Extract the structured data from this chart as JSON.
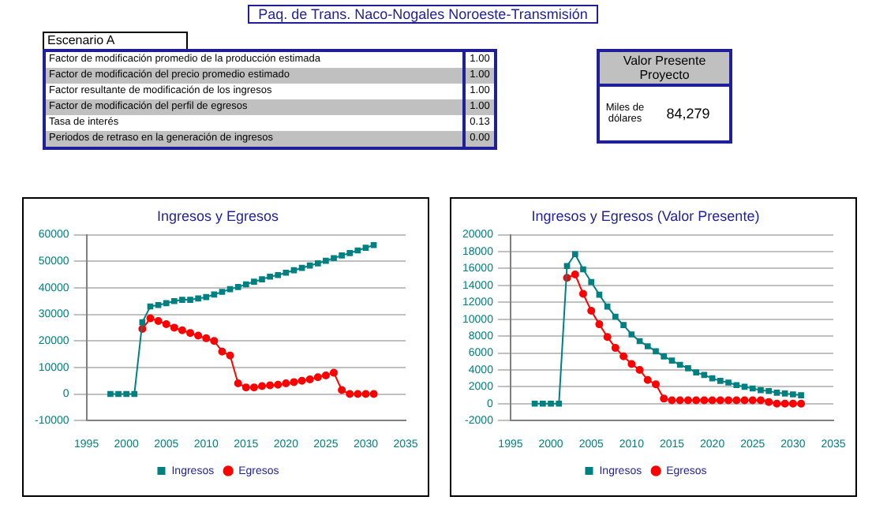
{
  "chart_data": [
    {
      "type": "other",
      "title": "Paq. de Trans. Naco-Nogales Noroeste-Transmisión",
      "subtitle": "Escenario A",
      "annotations": [
        "Factor de modificación promedio de la producción estimada",
        "1.00",
        "Factor de modificación del precio promedio estimado",
        "1.00",
        "Factor resultante de modificación de los ingresos",
        "1.00",
        "Factor de modificación del perfil de egresos",
        "1.00",
        "Tasa de interés",
        "0.13",
        "Periodos de retraso en la generación de ingresos",
        "0.00"
      ]
    },
    {
      "type": "other",
      "title": "Valor Presente Proyecto",
      "annotations": [
        "Miles de dólares",
        "84,279"
      ]
    },
    {
      "type": "line",
      "title": "Ingresos y Egresos",
      "x": [
        1998,
        1999,
        2000,
        2001,
        2002,
        2003,
        2004,
        2005,
        2006,
        2007,
        2008,
        2009,
        2010,
        2011,
        2012,
        2013,
        2014,
        2015,
        2016,
        2017,
        2018,
        2019,
        2020,
        2021,
        2022,
        2023,
        2024,
        2025,
        2026,
        2027,
        2028,
        2029,
        2030,
        2031
      ],
      "xlim": [
        1995,
        2035
      ],
      "xticks": [
        1995,
        2000,
        2005,
        2010,
        2015,
        2020,
        2025,
        2030,
        2035
      ],
      "ylim": [
        -10000,
        60000
      ],
      "yticks": [
        -10000,
        0,
        10000,
        20000,
        30000,
        40000,
        50000,
        60000
      ],
      "grid": "y",
      "legend": "bottom",
      "series": [
        {
          "name": "Egresos",
          "color": "#ff0000",
          "marker": "circle",
          "values": [
            null,
            null,
            null,
            null,
            24500,
            28500,
            27500,
            26300,
            25000,
            24000,
            23000,
            22000,
            21000,
            20000,
            16000,
            14500,
            4000,
            2500,
            2500,
            3000,
            3300,
            3500,
            4000,
            4500,
            5000,
            5500,
            6300,
            7000,
            8000,
            1500,
            0,
            0,
            0,
            0
          ]
        },
        {
          "name": "Ingresos",
          "color": "#008080",
          "marker": "square",
          "values": [
            0,
            0,
            0,
            0,
            27000,
            33000,
            33500,
            34200,
            35000,
            35500,
            35500,
            36000,
            36500,
            37500,
            38500,
            39500,
            40300,
            41300,
            42300,
            43200,
            44200,
            44800,
            45700,
            46600,
            47500,
            48400,
            49200,
            50200,
            51200,
            52200,
            53100,
            54100,
            55100,
            56100
          ]
        }
      ]
    },
    {
      "type": "line",
      "title": "Ingresos y Egresos (Valor Presente)",
      "x": [
        1998,
        1999,
        2000,
        2001,
        2002,
        2003,
        2004,
        2005,
        2006,
        2007,
        2008,
        2009,
        2010,
        2011,
        2012,
        2013,
        2014,
        2015,
        2016,
        2017,
        2018,
        2019,
        2020,
        2021,
        2022,
        2023,
        2024,
        2025,
        2026,
        2027,
        2028,
        2029,
        2030,
        2031
      ],
      "xlim": [
        1995,
        2035
      ],
      "xticks": [
        1995,
        2000,
        2005,
        2010,
        2015,
        2020,
        2025,
        2030,
        2035
      ],
      "ylim": [
        -2000,
        20000
      ],
      "yticks": [
        -2000,
        0,
        2000,
        4000,
        6000,
        8000,
        10000,
        12000,
        14000,
        16000,
        18000,
        20000
      ],
      "grid": "y",
      "legend": "bottom",
      "series": [
        {
          "name": "Egresos",
          "color": "#ff0000",
          "marker": "circle",
          "values": [
            null,
            null,
            null,
            null,
            14900,
            15300,
            13000,
            11000,
            9400,
            7900,
            6600,
            5600,
            4700,
            4000,
            2800,
            2300,
            600,
            400,
            400,
            400,
            400,
            400,
            400,
            400,
            400,
            400,
            400,
            400,
            400,
            200,
            0,
            0,
            0,
            0
          ]
        },
        {
          "name": "Ingresos",
          "color": "#008080",
          "marker": "square",
          "values": [
            0,
            0,
            0,
            0,
            16300,
            17700,
            15900,
            14400,
            12900,
            11500,
            10300,
            9300,
            8200,
            7400,
            6800,
            6200,
            5600,
            5100,
            4600,
            4200,
            3700,
            3400,
            3000,
            2700,
            2500,
            2200,
            2000,
            1800,
            1600,
            1500,
            1300,
            1200,
            1100,
            1000
          ]
        }
      ]
    }
  ]
}
